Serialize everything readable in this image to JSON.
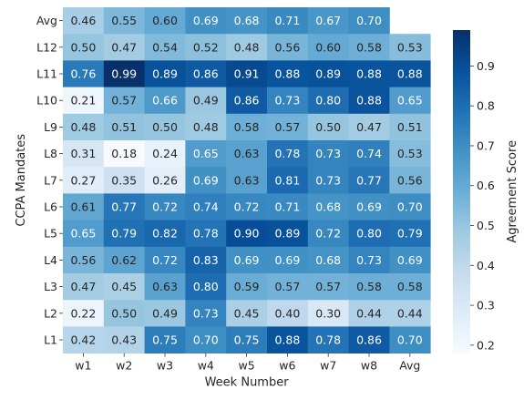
{
  "chart_data": {
    "type": "heatmap",
    "title": "",
    "xlabel": "Week Number",
    "ylabel": "CCPA Mandates",
    "x": [
      "w1",
      "w2",
      "w3",
      "w4",
      "w5",
      "w6",
      "w7",
      "w8",
      "Avg"
    ],
    "y": [
      "Avg",
      "L12",
      "L11",
      "L10",
      "L9",
      "L8",
      "L7",
      "L6",
      "L5",
      "L4",
      "L3",
      "L2",
      "L1"
    ],
    "values": [
      [
        0.46,
        0.55,
        0.6,
        0.69,
        0.68,
        0.71,
        0.67,
        0.7,
        null
      ],
      [
        0.5,
        0.47,
        0.54,
        0.52,
        0.48,
        0.56,
        0.6,
        0.58,
        0.53
      ],
      [
        0.76,
        0.99,
        0.89,
        0.86,
        0.91,
        0.88,
        0.89,
        0.88,
        0.88
      ],
      [
        0.21,
        0.57,
        0.66,
        0.49,
        0.86,
        0.73,
        0.8,
        0.88,
        0.65
      ],
      [
        0.48,
        0.51,
        0.5,
        0.48,
        0.58,
        0.57,
        0.5,
        0.47,
        0.51
      ],
      [
        0.31,
        0.18,
        0.24,
        0.65,
        0.63,
        0.78,
        0.73,
        0.74,
        0.53
      ],
      [
        0.27,
        0.35,
        0.26,
        0.69,
        0.63,
        0.81,
        0.73,
        0.77,
        0.56
      ],
      [
        0.61,
        0.77,
        0.72,
        0.74,
        0.72,
        0.71,
        0.68,
        0.69,
        0.7
      ],
      [
        0.65,
        0.79,
        0.82,
        0.78,
        0.9,
        0.89,
        0.72,
        0.8,
        0.79
      ],
      [
        0.56,
        0.62,
        0.72,
        0.83,
        0.69,
        0.69,
        0.68,
        0.73,
        0.69
      ],
      [
        0.47,
        0.45,
        0.63,
        0.8,
        0.59,
        0.57,
        0.57,
        0.58,
        0.58
      ],
      [
        0.22,
        0.5,
        0.49,
        0.73,
        0.45,
        0.4,
        0.3,
        0.44,
        0.44
      ],
      [
        0.42,
        0.43,
        0.75,
        0.7,
        0.75,
        0.88,
        0.78,
        0.86,
        0.7
      ]
    ],
    "colorbar": {
      "label": "Agreement Score",
      "range": [
        0.18,
        0.99
      ],
      "ticks": [
        0.2,
        0.3,
        0.4,
        0.5,
        0.6,
        0.7,
        0.8,
        0.9
      ],
      "tick_labels": [
        "0.2",
        "0.3",
        "0.4",
        "0.5",
        "0.6",
        "0.7",
        "0.8",
        "0.9"
      ],
      "colormap": "Blues",
      "color_low": "#f7fbff",
      "color_high": "#08306b"
    },
    "annotation_decimals": 2
  }
}
